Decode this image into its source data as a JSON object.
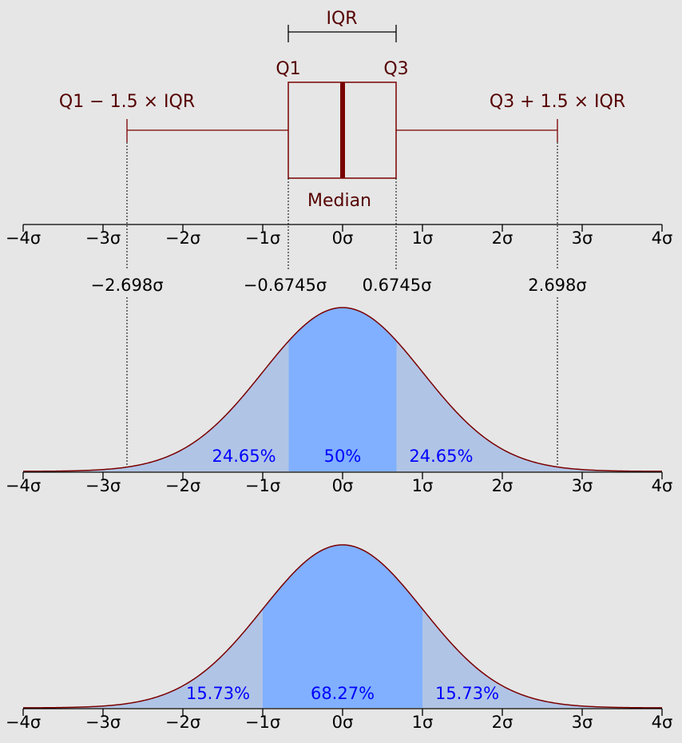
{
  "colors": {
    "background": "#e6e6e6",
    "box_stroke": "#7a0000",
    "box_text": "#550000",
    "curve_stroke": "#7a0000",
    "fill_light": "#b0c4e6",
    "fill_dark": "#80b0ff",
    "pct_text": "#0000ff",
    "axis": "#000000"
  },
  "boxplot": {
    "iqr_label": "IQR",
    "q1_label": "Q1",
    "q3_label": "Q3",
    "median_label": "Median",
    "lower_fence_label": "Q1 − 1.5 × IQR",
    "upper_fence_label": "Q3 + 1.5 × IQR",
    "q1": -0.6745,
    "q3": 0.6745,
    "median": 0,
    "lower_whisker": -2.698,
    "upper_whisker": 2.698
  },
  "axis": {
    "ticks": [
      -4,
      -3,
      -2,
      -1,
      0,
      1,
      2,
      3,
      4
    ],
    "tick_labels": [
      "−4σ",
      "−3σ",
      "−2σ",
      "−1σ",
      "0σ",
      "1σ",
      "2σ",
      "3σ",
      "4σ"
    ],
    "range": [
      -4,
      4
    ]
  },
  "quantile_labels": [
    "−2.698σ",
    "−0.6745σ",
    "0.6745σ",
    "2.698σ"
  ],
  "chart_data": [
    {
      "type": "area",
      "x_range": [
        -4,
        4
      ],
      "regions": [
        {
          "from": -2.698,
          "to": -0.6745,
          "percent": 24.65,
          "label": "24.65%"
        },
        {
          "from": -0.6745,
          "to": 0.6745,
          "percent": 50,
          "label": "50%"
        },
        {
          "from": 0.6745,
          "to": 2.698,
          "percent": 24.65,
          "label": "24.65%"
        }
      ]
    },
    {
      "type": "area",
      "x_range": [
        -4,
        4
      ],
      "regions": [
        {
          "from": -2,
          "to": -1,
          "percent": 15.73,
          "label": "15.73%"
        },
        {
          "from": -1,
          "to": 1,
          "percent": 68.27,
          "label": "68.27%"
        },
        {
          "from": 1,
          "to": 2,
          "percent": 15.73,
          "label": "15.73%"
        }
      ]
    }
  ]
}
